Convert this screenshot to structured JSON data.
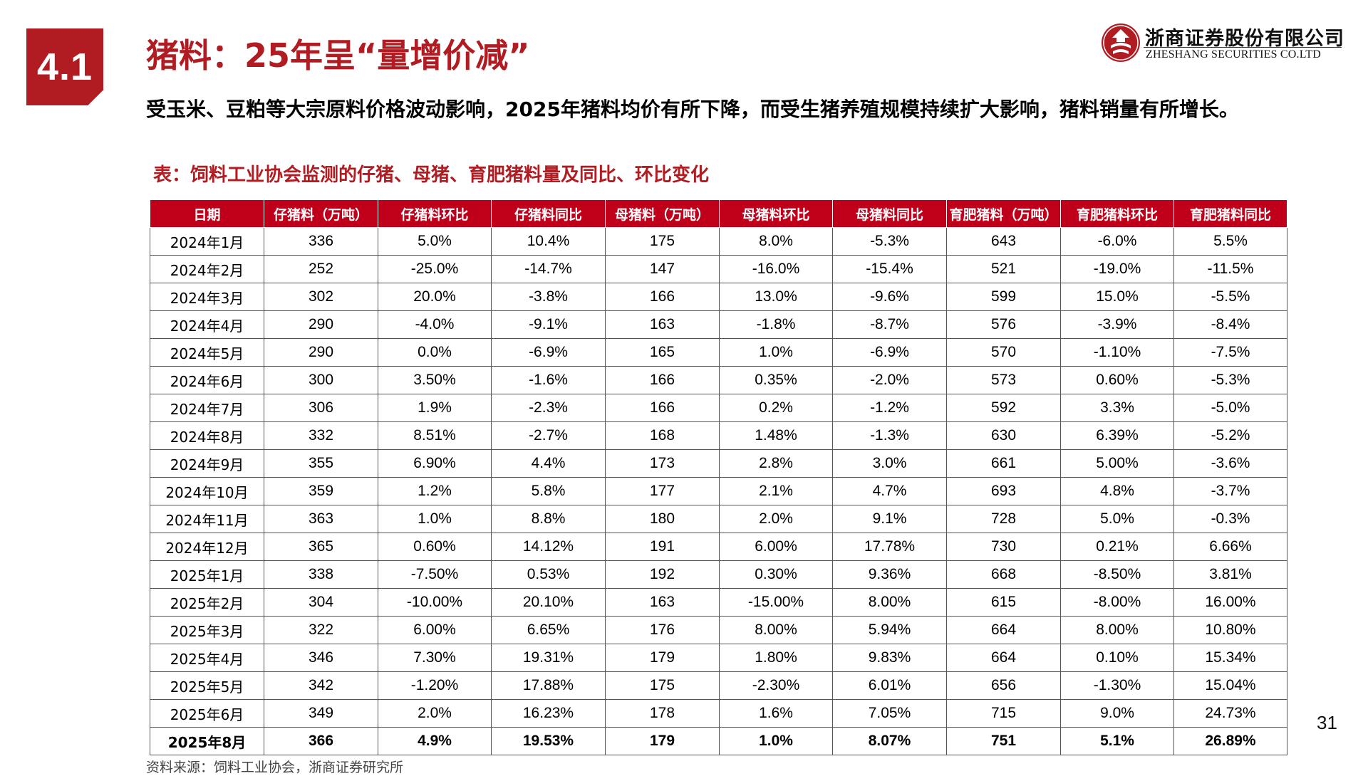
{
  "header": {
    "section_number": "4.1",
    "title": "猪料：25年呈“量增价减”"
  },
  "logo": {
    "name_cn": "浙商证券股份有限公司",
    "name_en": "ZHESHANG SECURITIES CO.LTD",
    "brand_color": "#b01c22"
  },
  "subtitle": "受玉米、豆粕等大宗原料价格波动影响，2025年猪料均价有所下降，而受生猪养殖规模持续扩大影响，猪料销量有所增长。",
  "table": {
    "caption": "表：饲料工业协会监测的仔猪、母猪、育肥猪料量及同比、环比变化",
    "header_color": "#c0001a",
    "columns": [
      "日期",
      "仔猪料（万吨）",
      "仔猪料环比",
      "仔猪料同比",
      "母猪料（万吨）",
      "母猪料环比",
      "母猪料同比",
      "育肥猪料（万吨）",
      "育肥猪料环比",
      "育肥猪料同比"
    ],
    "rows": [
      [
        "2024年1月",
        "336",
        "5.0%",
        "10.4%",
        "175",
        "8.0%",
        "-5.3%",
        "643",
        "-6.0%",
        "5.5%"
      ],
      [
        "2024年2月",
        "252",
        "-25.0%",
        "-14.7%",
        "147",
        "-16.0%",
        "-15.4%",
        "521",
        "-19.0%",
        "-11.5%"
      ],
      [
        "2024年3月",
        "302",
        "20.0%",
        "-3.8%",
        "166",
        "13.0%",
        "-9.6%",
        "599",
        "15.0%",
        "-5.5%"
      ],
      [
        "2024年4月",
        "290",
        "-4.0%",
        "-9.1%",
        "163",
        "-1.8%",
        "-8.7%",
        "576",
        "-3.9%",
        "-8.4%"
      ],
      [
        "2024年5月",
        "290",
        "0.0%",
        "-6.9%",
        "165",
        "1.0%",
        "-6.9%",
        "570",
        "-1.10%",
        "-7.5%"
      ],
      [
        "2024年6月",
        "300",
        "3.50%",
        "-1.6%",
        "166",
        "0.35%",
        "-2.0%",
        "573",
        "0.60%",
        "-5.3%"
      ],
      [
        "2024年7月",
        "306",
        "1.9%",
        "-2.3%",
        "166",
        "0.2%",
        "-1.2%",
        "592",
        "3.3%",
        "-5.0%"
      ],
      [
        "2024年8月",
        "332",
        "8.51%",
        "-2.7%",
        "168",
        "1.48%",
        "-1.3%",
        "630",
        "6.39%",
        "-5.2%"
      ],
      [
        "2024年9月",
        "355",
        "6.90%",
        "4.4%",
        "173",
        "2.8%",
        "3.0%",
        "661",
        "5.00%",
        "-3.6%"
      ],
      [
        "2024年10月",
        "359",
        "1.2%",
        "5.8%",
        "177",
        "2.1%",
        "4.7%",
        "693",
        "4.8%",
        "-3.7%"
      ],
      [
        "2024年11月",
        "363",
        "1.0%",
        "8.8%",
        "180",
        "2.0%",
        "9.1%",
        "728",
        "5.0%",
        "-0.3%"
      ],
      [
        "2024年12月",
        "365",
        "0.60%",
        "14.12%",
        "191",
        "6.00%",
        "17.78%",
        "730",
        "0.21%",
        "6.66%"
      ],
      [
        "2025年1月",
        "338",
        "-7.50%",
        "0.53%",
        "192",
        "0.30%",
        "9.36%",
        "668",
        "-8.50%",
        "3.81%"
      ],
      [
        "2025年2月",
        "304",
        "-10.00%",
        "20.10%",
        "163",
        "-15.00%",
        "8.00%",
        "615",
        "-8.00%",
        "16.00%"
      ],
      [
        "2025年3月",
        "322",
        "6.00%",
        "6.65%",
        "176",
        "8.00%",
        "5.94%",
        "664",
        "8.00%",
        "10.80%"
      ],
      [
        "2025年4月",
        "346",
        "7.30%",
        "19.31%",
        "179",
        "1.80%",
        "9.83%",
        "664",
        "0.10%",
        "15.34%"
      ],
      [
        "2025年5月",
        "342",
        "-1.20%",
        "17.88%",
        "175",
        "-2.30%",
        "6.01%",
        "656",
        "-1.30%",
        "15.04%"
      ],
      [
        "2025年6月",
        "349",
        "2.0%",
        "16.23%",
        "178",
        "1.6%",
        "7.05%",
        "715",
        "9.0%",
        "24.73%"
      ],
      [
        "2025年8月",
        "366",
        "4.9%",
        "19.53%",
        "179",
        "1.0%",
        "8.07%",
        "751",
        "5.1%",
        "26.89%"
      ]
    ],
    "bold_last_row": true
  },
  "page_number": "31",
  "source_note": "资料来源：饲料工业协会，浙商证券研究所"
}
